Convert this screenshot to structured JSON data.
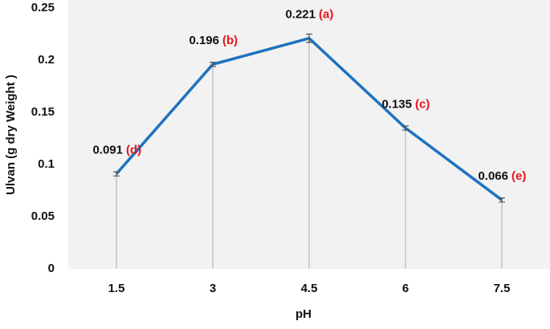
{
  "chart_data": {
    "type": "line",
    "x_label": "pH",
    "y_label": "Ulvan (g dry Weight )",
    "categories": [
      "1.5",
      "3",
      "4.5",
      "6",
      "7.5"
    ],
    "series": [
      {
        "color": "#1f72bf",
        "values": [
          0.091,
          0.196,
          0.221,
          0.135,
          0.066
        ],
        "errors": [
          0.002,
          0.002,
          0.004,
          0.002,
          0.002
        ],
        "value_labels": [
          "0.091",
          "0.196",
          "0.221",
          "0.135",
          "0.066"
        ],
        "letters": [
          "(d)",
          "(b)",
          "(a)",
          "(c)",
          "(e)"
        ],
        "letter_color": "#e8141c"
      }
    ],
    "ylim": [
      0,
      0.25
    ],
    "yticks": [
      0,
      0.05,
      0.1,
      0.15,
      0.2,
      0.25
    ],
    "drop_lines": true
  }
}
